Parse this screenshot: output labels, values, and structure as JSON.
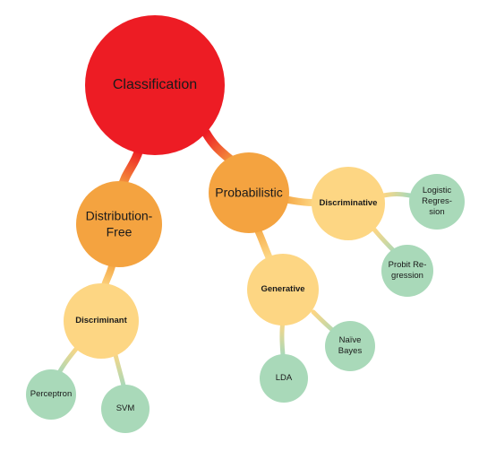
{
  "colors": {
    "root": "#ed1c24",
    "main": "#f4a340",
    "sub": "#fdd683",
    "leaf": "#a9d9b9"
  },
  "nodes": {
    "root": {
      "label": "Classification"
    },
    "distribution_free": {
      "line1": "Distribution-",
      "line2": "Free"
    },
    "probabilistic": {
      "label": "Probabilistic"
    },
    "discriminant": {
      "label": "Discriminant"
    },
    "generative": {
      "label": "Generative"
    },
    "discriminative": {
      "label": "Discriminative"
    },
    "perceptron": {
      "label": "Perceptron"
    },
    "svm": {
      "label": "SVM"
    },
    "lda": {
      "label": "LDA"
    },
    "naive_bayes": {
      "line1": "Naïve",
      "line2": "Bayes"
    },
    "logistic_regression": {
      "line1": "Logistic",
      "line2": "Regres-",
      "line3": "sion"
    },
    "probit_regression": {
      "line1": "Probit Re-",
      "line2": "gression"
    }
  }
}
